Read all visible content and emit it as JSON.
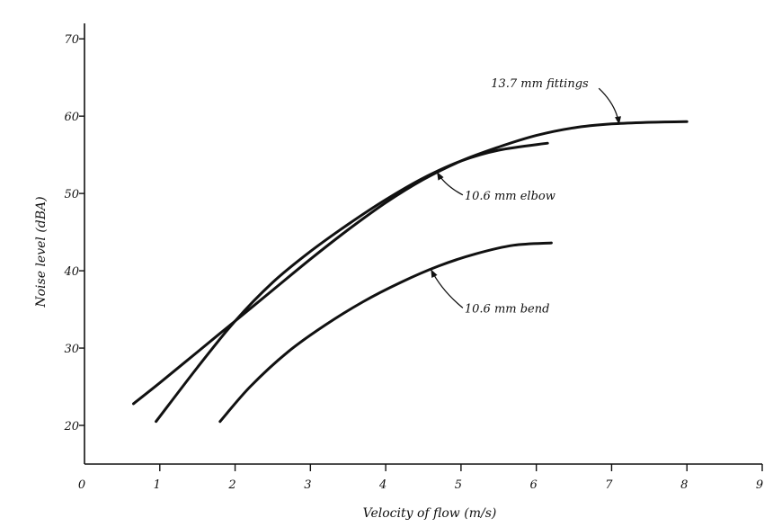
{
  "chart_data": {
    "type": "line",
    "xlabel": "Velocity of flow (m/s)",
    "ylabel": "Noise level (dBA)",
    "xlim": [
      0,
      9
    ],
    "ylim": [
      15,
      72
    ],
    "x_ticks": [
      0,
      1,
      2,
      3,
      4,
      5,
      6,
      7,
      8,
      9
    ],
    "y_ticks": [
      20,
      30,
      40,
      50,
      60,
      70
    ],
    "grid": false,
    "series": [
      {
        "name": "13.7 mm fittings",
        "x": [
          0.65,
          1.0,
          1.5,
          2.0,
          2.5,
          3.0,
          3.5,
          4.0,
          4.5,
          5.0,
          5.5,
          6.0,
          6.5,
          7.0,
          7.5,
          8.0
        ],
        "y": [
          22.8,
          25.5,
          29.5,
          33.5,
          37.5,
          41.5,
          45.3,
          48.8,
          51.8,
          54.2,
          56.0,
          57.5,
          58.5,
          59.0,
          59.2,
          59.3
        ]
      },
      {
        "name": "10.6 mm elbow",
        "x": [
          0.95,
          1.5,
          2.0,
          2.5,
          3.0,
          3.5,
          4.0,
          4.5,
          5.0,
          5.5,
          6.15
        ],
        "y": [
          20.5,
          27.5,
          33.5,
          38.5,
          42.5,
          46.0,
          49.2,
          52.0,
          54.2,
          55.6,
          56.5
        ]
      },
      {
        "name": "10.6 mm bend",
        "x": [
          1.8,
          2.2,
          2.7,
          3.2,
          3.7,
          4.2,
          4.7,
          5.2,
          5.7,
          6.2
        ],
        "y": [
          20.5,
          25.0,
          29.5,
          33.0,
          36.0,
          38.5,
          40.6,
          42.2,
          43.3,
          43.6
        ]
      }
    ],
    "annotations": [
      {
        "text": "13.7 mm fittings",
        "label_x": 5.35,
        "label_y": 64.3,
        "target_x": 7.1,
        "target_y": 58.9
      },
      {
        "text": "10.6 mm elbow",
        "label_x": 5.0,
        "label_y": 49.8,
        "target_x": 4.68,
        "target_y": 52.8
      },
      {
        "text": "10.6 mm bend",
        "label_x": 5.0,
        "label_y": 35.2,
        "target_x": 4.6,
        "target_y": 40.2
      }
    ]
  }
}
